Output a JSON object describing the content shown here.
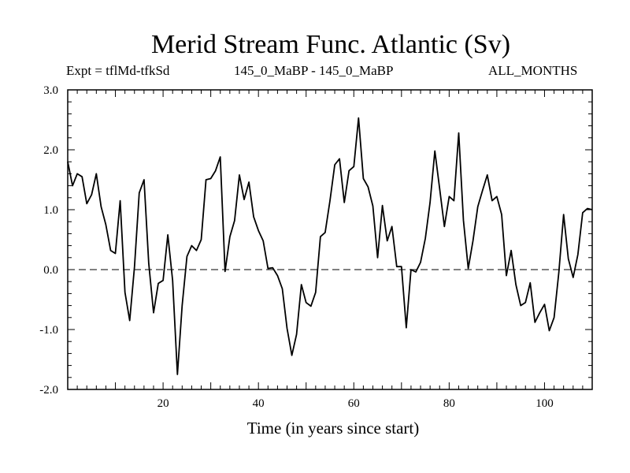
{
  "header": {
    "title": "Merid Stream Func. Atlantic (Sv)",
    "expt_label": "Expt = tflMd-tfkSd",
    "period_label": "145_0_MaBP - 145_0_MaBP",
    "months_label": "ALL_MONTHS"
  },
  "chart_data": {
    "type": "line",
    "title": "Merid Stream Func. Atlantic (Sv)",
    "xlabel": "Time (in years since start)",
    "ylabel": "",
    "xlim": [
      0,
      110
    ],
    "ylim": [
      -2.0,
      3.0
    ],
    "xticks": [
      20,
      40,
      60,
      80,
      100
    ],
    "yticks": [
      -2.0,
      -1.0,
      0.0,
      1.0,
      2.0,
      3.0
    ],
    "xtick_labels": [
      "20",
      "40",
      "60",
      "80",
      "100"
    ],
    "ytick_labels": [
      "-2.0",
      "-1.0",
      "0.0",
      "1.0",
      "2.0",
      "3.0"
    ],
    "reference_line": {
      "y": 0.0,
      "style": "dashed"
    },
    "series": [
      {
        "name": "tflMd-tfkSd",
        "x": [
          0,
          1,
          2,
          3,
          4,
          5,
          6,
          7,
          8,
          9,
          10,
          11,
          12,
          13,
          14,
          15,
          16,
          17,
          18,
          19,
          20,
          21,
          22,
          23,
          24,
          25,
          26,
          27,
          28,
          29,
          30,
          31,
          32,
          33,
          34,
          35,
          36,
          37,
          38,
          39,
          40,
          41,
          42,
          43,
          44,
          45,
          46,
          47,
          48,
          49,
          50,
          51,
          52,
          53,
          54,
          55,
          56,
          57,
          58,
          59,
          60,
          61,
          62,
          63,
          64,
          65,
          66,
          67,
          68,
          69,
          70,
          71,
          72,
          73,
          74,
          75,
          76,
          77,
          78,
          79,
          80,
          81,
          82,
          83,
          84,
          85,
          86,
          87,
          88,
          89,
          90,
          91,
          92,
          93,
          94,
          95,
          96,
          97,
          98,
          99,
          100,
          101,
          102,
          103,
          104,
          105,
          106,
          107,
          108,
          109,
          110
        ],
        "values": [
          1.8,
          1.4,
          1.6,
          1.55,
          1.1,
          1.25,
          1.6,
          1.05,
          0.75,
          0.32,
          0.27,
          1.15,
          -0.38,
          -0.85,
          0.05,
          1.28,
          1.5,
          0.1,
          -0.72,
          -0.23,
          -0.18,
          0.58,
          -0.18,
          -1.75,
          -0.6,
          0.22,
          0.4,
          0.32,
          0.5,
          1.5,
          1.52,
          1.65,
          1.88,
          -0.03,
          0.55,
          0.82,
          1.58,
          1.17,
          1.46,
          0.88,
          0.65,
          0.48,
          0.02,
          0.03,
          -0.1,
          -0.32,
          -0.98,
          -1.43,
          -1.08,
          -0.25,
          -0.55,
          -0.61,
          -0.38,
          0.55,
          0.62,
          1.15,
          1.75,
          1.85,
          1.12,
          1.65,
          1.72,
          2.53,
          1.52,
          1.38,
          1.06,
          0.2,
          1.07,
          0.48,
          0.72,
          0.05,
          0.05,
          -0.97,
          0.0,
          -0.04,
          0.12,
          0.52,
          1.12,
          1.98,
          1.35,
          0.72,
          1.22,
          1.15,
          2.28,
          0.82,
          0.02,
          0.48,
          1.05,
          1.32,
          1.58,
          1.15,
          1.22,
          0.92,
          -0.1,
          0.32,
          -0.25,
          -0.6,
          -0.55,
          -0.22,
          -0.88,
          -0.72,
          -0.58,
          -1.02,
          -0.8,
          -0.05,
          0.92,
          0.18,
          -0.13,
          0.25,
          0.95,
          1.02,
          1.0
        ]
      }
    ]
  }
}
